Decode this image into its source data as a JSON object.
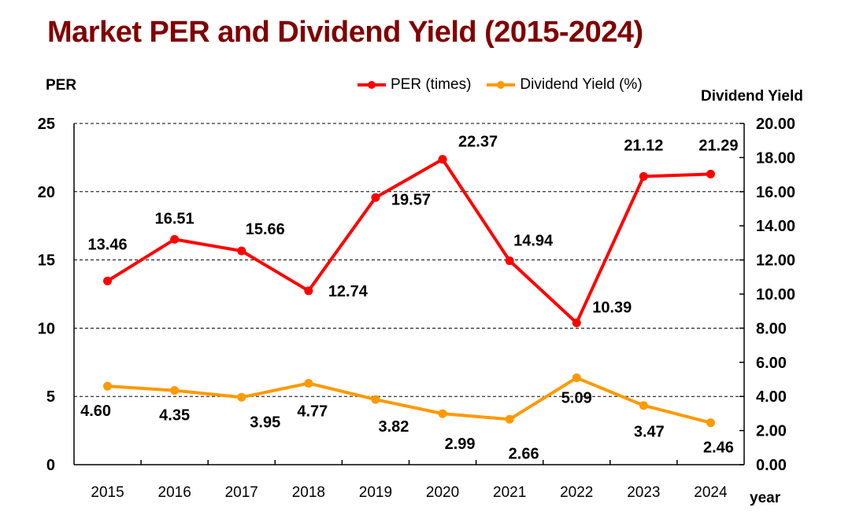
{
  "chart_data": {
    "type": "line",
    "title": "Market PER and Dividend Yield (2015-2024)",
    "xlabel": "year",
    "ylabel_left": "PER",
    "ylabel_right": "Dividend Yield",
    "categories": [
      "2015",
      "2016",
      "2017",
      "2018",
      "2019",
      "2020",
      "2021",
      "2022",
      "2023",
      "2024"
    ],
    "y_left": {
      "range": [
        0,
        25
      ],
      "ticks": [
        "0",
        "5",
        "10",
        "15",
        "20",
        "25"
      ],
      "tick_values": [
        0,
        5,
        10,
        15,
        20,
        25
      ]
    },
    "y_right": {
      "range": [
        0,
        20
      ],
      "ticks": [
        "0.00",
        "2.00",
        "4.00",
        "6.00",
        "8.00",
        "10.00",
        "12.00",
        "14.00",
        "16.00",
        "18.00",
        "20.00"
      ],
      "tick_values": [
        0,
        2,
        4,
        6,
        8,
        10,
        12,
        14,
        16,
        18,
        20
      ]
    },
    "grid": "horizontal dashed at left-axis major ticks",
    "legend_position": "top-center",
    "series": [
      {
        "name": "PER (times)",
        "axis": "left",
        "color": "#ff0000",
        "values": [
          13.46,
          16.51,
          15.66,
          12.74,
          19.57,
          22.37,
          14.94,
          10.39,
          21.12,
          21.29
        ],
        "labels": [
          "13.46",
          "16.51",
          "15.66",
          "12.74",
          "19.57",
          "22.37",
          "14.94",
          "10.39",
          "21.12",
          "21.29"
        ]
      },
      {
        "name": "Dividend Yield (%)",
        "axis": "right",
        "color": "#ff9900",
        "values": [
          4.6,
          4.35,
          3.95,
          4.77,
          3.82,
          2.99,
          2.66,
          5.09,
          3.47,
          2.46
        ],
        "labels": [
          "4.60",
          "4.35",
          "3.95",
          "4.77",
          "3.82",
          "2.99",
          "2.66",
          "5.09",
          "3.47",
          "2.46"
        ]
      }
    ]
  }
}
